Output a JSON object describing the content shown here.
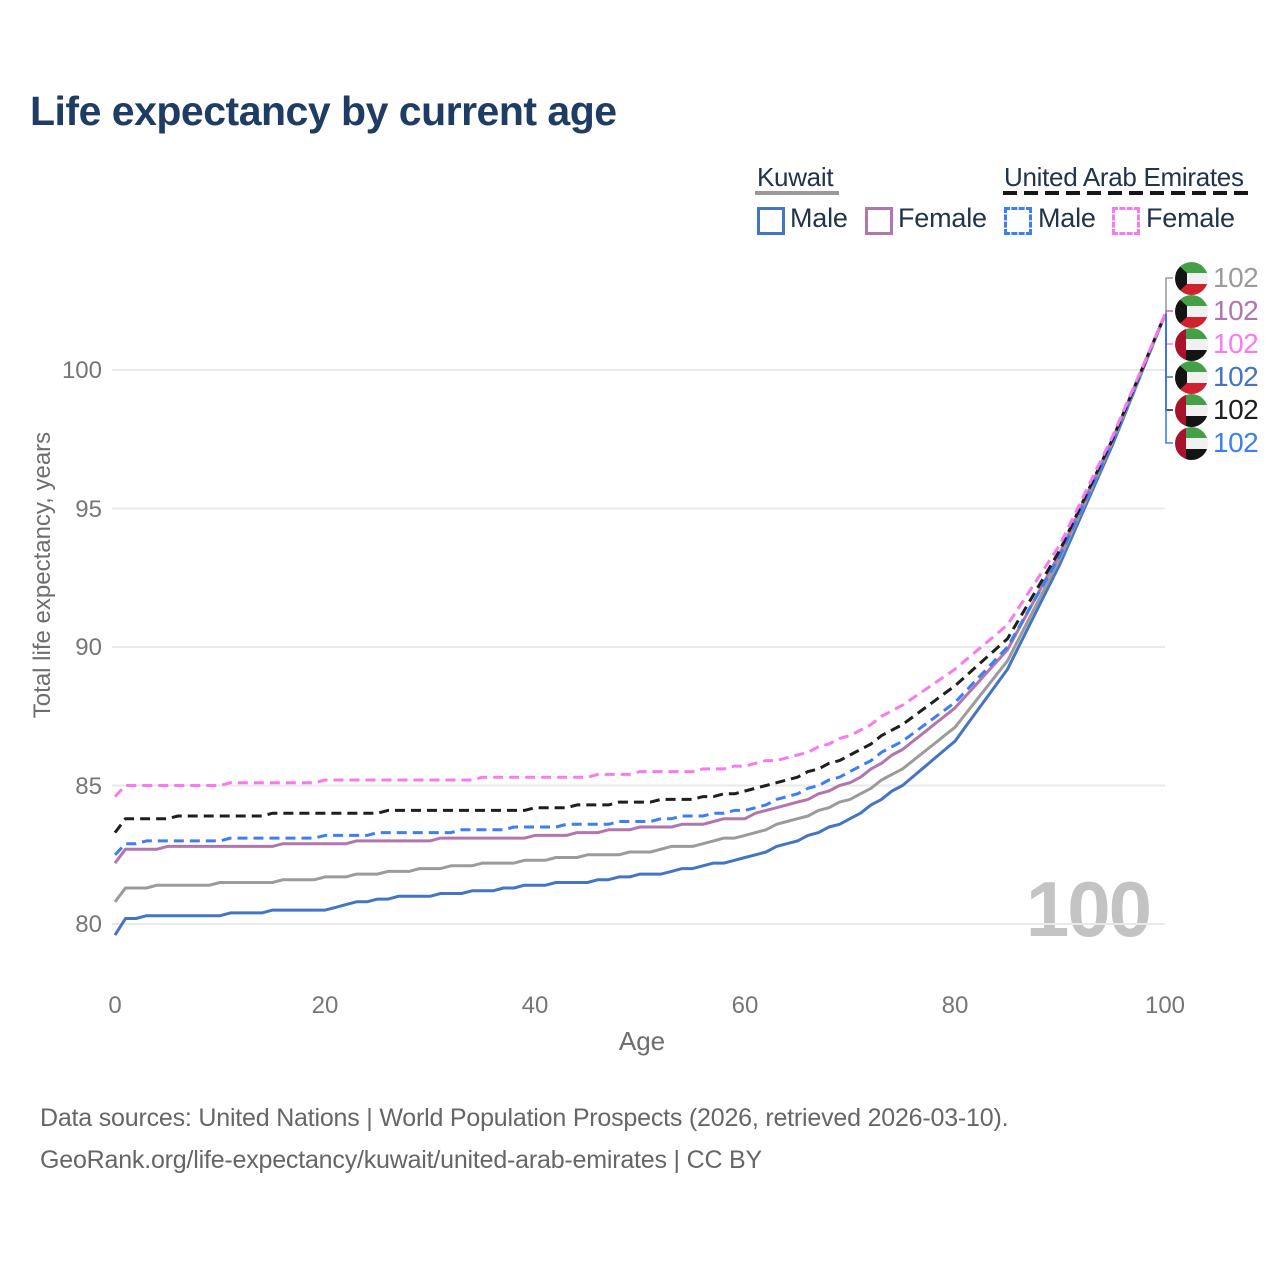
{
  "title": "Life expectancy by current age",
  "legend": {
    "groups": [
      {
        "id": "kuwait",
        "name": "Kuwait",
        "line_style": "solid",
        "line_color": "#9a9a9a",
        "items": [
          {
            "id": "kuwait-male",
            "label": "Male",
            "color": "#4474c4"
          },
          {
            "id": "kuwait-female",
            "label": "Female",
            "color": "#b275ae"
          }
        ]
      },
      {
        "id": "uae",
        "name": "United Arab Emirates",
        "line_style": "dashed",
        "line_color": "#1a1a1a",
        "items": [
          {
            "id": "uae-male",
            "label": "Male",
            "color": "#3d7ef5"
          },
          {
            "id": "uae-female",
            "label": "Female",
            "color": "#f97af0"
          }
        ]
      }
    ]
  },
  "watermark_age": "100",
  "footer": {
    "line1": "Data sources: United Nations | World Population Prospects (2026, retrieved 2026-03-10).",
    "line2": "GeoRank.org/life-expectancy/kuwait/united-arab-emirates | CC BY"
  },
  "chart_data": {
    "type": "line",
    "title": "Life expectancy by current age",
    "xlabel": "Age",
    "ylabel": "Total life expectancy, years",
    "xlim": [
      0,
      100
    ],
    "ylim": [
      78.5,
      103
    ],
    "xticks": [
      0,
      20,
      40,
      60,
      80,
      100
    ],
    "yticks": [
      80,
      85,
      90,
      95,
      100
    ],
    "grid": "horizontal-only",
    "legend_position": "top-right",
    "ages": [
      0,
      1,
      5,
      10,
      15,
      20,
      25,
      30,
      35,
      40,
      45,
      50,
      55,
      60,
      65,
      70,
      75,
      80,
      85,
      90,
      95,
      100
    ],
    "series": [
      {
        "id": "kuwait-male",
        "name": "Kuwait Male",
        "country": "Kuwait",
        "sex": "Male",
        "color": "#4474c4",
        "dash": "solid",
        "flag": "kuwait",
        "end_label": "102",
        "label_row": 3,
        "values": [
          79.6,
          80.2,
          80.3,
          80.35,
          80.45,
          80.55,
          80.9,
          81.05,
          81.2,
          81.4,
          81.55,
          81.75,
          82.0,
          82.4,
          83.0,
          83.8,
          85.0,
          86.6,
          89.2,
          93.0,
          97.3,
          102
        ]
      },
      {
        "id": "kuwait-overall",
        "name": "Kuwait",
        "country": "Kuwait",
        "sex": "All",
        "color": "#9b9b9b",
        "dash": "solid",
        "flag": "kuwait",
        "end_label": "102",
        "label_row": 0,
        "values": [
          80.8,
          81.3,
          81.4,
          81.45,
          81.55,
          81.65,
          81.85,
          82.0,
          82.15,
          82.3,
          82.45,
          82.6,
          82.85,
          83.2,
          83.8,
          84.5,
          85.6,
          87.1,
          89.5,
          93.2,
          97.4,
          102
        ]
      },
      {
        "id": "kuwait-female",
        "name": "Kuwait Female",
        "country": "Kuwait",
        "sex": "Female",
        "color": "#b275ae",
        "dash": "solid",
        "flag": "kuwait",
        "end_label": "102",
        "label_row": 1,
        "values": [
          82.2,
          82.65,
          82.75,
          82.8,
          82.85,
          82.9,
          83.0,
          83.05,
          83.1,
          83.15,
          83.3,
          83.45,
          83.6,
          83.85,
          84.4,
          85.1,
          86.3,
          87.8,
          89.9,
          93.4,
          97.5,
          102
        ]
      },
      {
        "id": "uae-male",
        "name": "United Arab Emirates Male",
        "country": "United Arab Emirates",
        "sex": "Male",
        "color": "#3d7ef5",
        "dash": "dashed",
        "flag": "uae",
        "end_label": "102",
        "label_row": 5,
        "values": [
          82.5,
          82.9,
          83.0,
          83.05,
          83.1,
          83.15,
          83.25,
          83.3,
          83.4,
          83.5,
          83.6,
          83.7,
          83.9,
          84.1,
          84.7,
          85.5,
          86.6,
          88.0,
          90.0,
          93.3,
          97.4,
          102
        ]
      },
      {
        "id": "uae-overall",
        "name": "United Arab Emirates",
        "country": "United Arab Emirates",
        "sex": "All",
        "color": "#1f1f1f",
        "dash": "dashed",
        "flag": "uae",
        "end_label": "102",
        "label_row": 4,
        "values": [
          83.3,
          83.75,
          83.85,
          83.9,
          83.95,
          84.0,
          84.05,
          84.1,
          84.1,
          84.15,
          84.3,
          84.4,
          84.55,
          84.75,
          85.3,
          86.1,
          87.2,
          88.6,
          90.3,
          93.5,
          97.5,
          102
        ]
      },
      {
        "id": "uae-female",
        "name": "United Arab Emirates Female",
        "country": "United Arab Emirates",
        "sex": "Female",
        "color": "#f97af0",
        "dash": "dashed",
        "flag": "uae",
        "end_label": "102",
        "label_row": 2,
        "values": [
          84.6,
          84.95,
          85.0,
          85.05,
          85.1,
          85.15,
          85.2,
          85.2,
          85.25,
          85.3,
          85.35,
          85.45,
          85.55,
          85.7,
          86.1,
          86.8,
          87.9,
          89.2,
          90.8,
          93.7,
          97.6,
          102
        ]
      }
    ]
  }
}
